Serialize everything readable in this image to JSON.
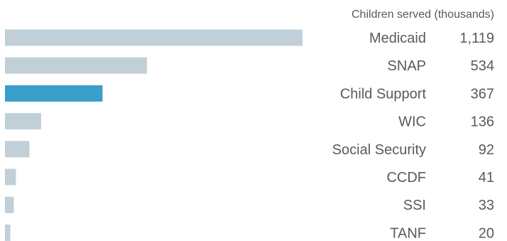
{
  "chart_data": {
    "type": "bar",
    "orientation": "horizontal",
    "value_header": "Children served (thousands)",
    "categories": [
      "Medicaid",
      "SNAP",
      "Child Support",
      "WIC",
      "Social Security",
      "CCDF",
      "SSI",
      "TANF"
    ],
    "values": [
      1119,
      534,
      367,
      136,
      92,
      41,
      33,
      20
    ],
    "value_labels": [
      "1,119",
      "534",
      "367",
      "136",
      "92",
      "41",
      "33",
      "20"
    ],
    "highlight": "Child Support",
    "xlim": [
      0,
      1119
    ],
    "grid": false,
    "legend": "none"
  },
  "colors": {
    "bar": "#c1d0d8",
    "highlight": "#3a9fcb",
    "text": "#555b61"
  }
}
